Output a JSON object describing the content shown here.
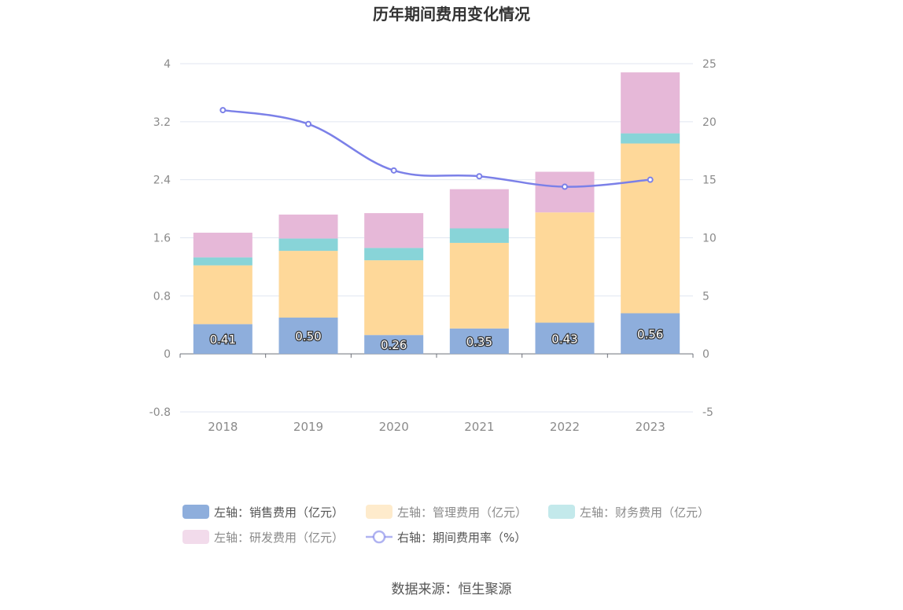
{
  "chart_data": {
    "type": "bar",
    "title": "历年期间费用变化情况",
    "categories": [
      "2018",
      "2019",
      "2020",
      "2021",
      "2022",
      "2023"
    ],
    "series": [
      {
        "name": "左轴：销售费用（亿元）",
        "axis": "left",
        "type": "bar",
        "color": "#8eaedc",
        "values": [
          0.41,
          0.5,
          0.26,
          0.35,
          0.43,
          0.56
        ],
        "show_labels": true
      },
      {
        "name": "左轴：管理费用（亿元）",
        "axis": "left",
        "type": "bar",
        "color": "#fed899",
        "values": [
          0.81,
          0.92,
          1.03,
          1.18,
          1.52,
          2.34
        ]
      },
      {
        "name": "左轴：财务费用（亿元）",
        "axis": "left",
        "type": "bar",
        "color": "#88d4d8",
        "values": [
          0.11,
          0.17,
          0.17,
          0.2,
          0.0,
          0.14
        ]
      },
      {
        "name": "左轴：研发费用（亿元）",
        "axis": "left",
        "type": "bar",
        "color": "#e6b8d8",
        "values": [
          0.34,
          0.33,
          0.48,
          0.54,
          0.56,
          0.84
        ]
      },
      {
        "name": "右轴：期间费用率（%）",
        "axis": "right",
        "type": "line",
        "color": "#7b80e8",
        "values": [
          21.0,
          19.8,
          15.8,
          15.3,
          14.4,
          15.0
        ]
      }
    ],
    "left_axis": {
      "ylim": [
        -0.8,
        4
      ],
      "ticks": [
        "-0.8",
        "0",
        "0.8",
        "1.6",
        "2.4",
        "3.2",
        "4"
      ]
    },
    "right_axis": {
      "ylim": [
        -5,
        25
      ],
      "ticks": [
        "-5",
        "0",
        "5",
        "10",
        "15",
        "20",
        "25"
      ]
    },
    "legend_position": "bottom",
    "grid": true
  },
  "source": "数据来源：恒生聚源"
}
